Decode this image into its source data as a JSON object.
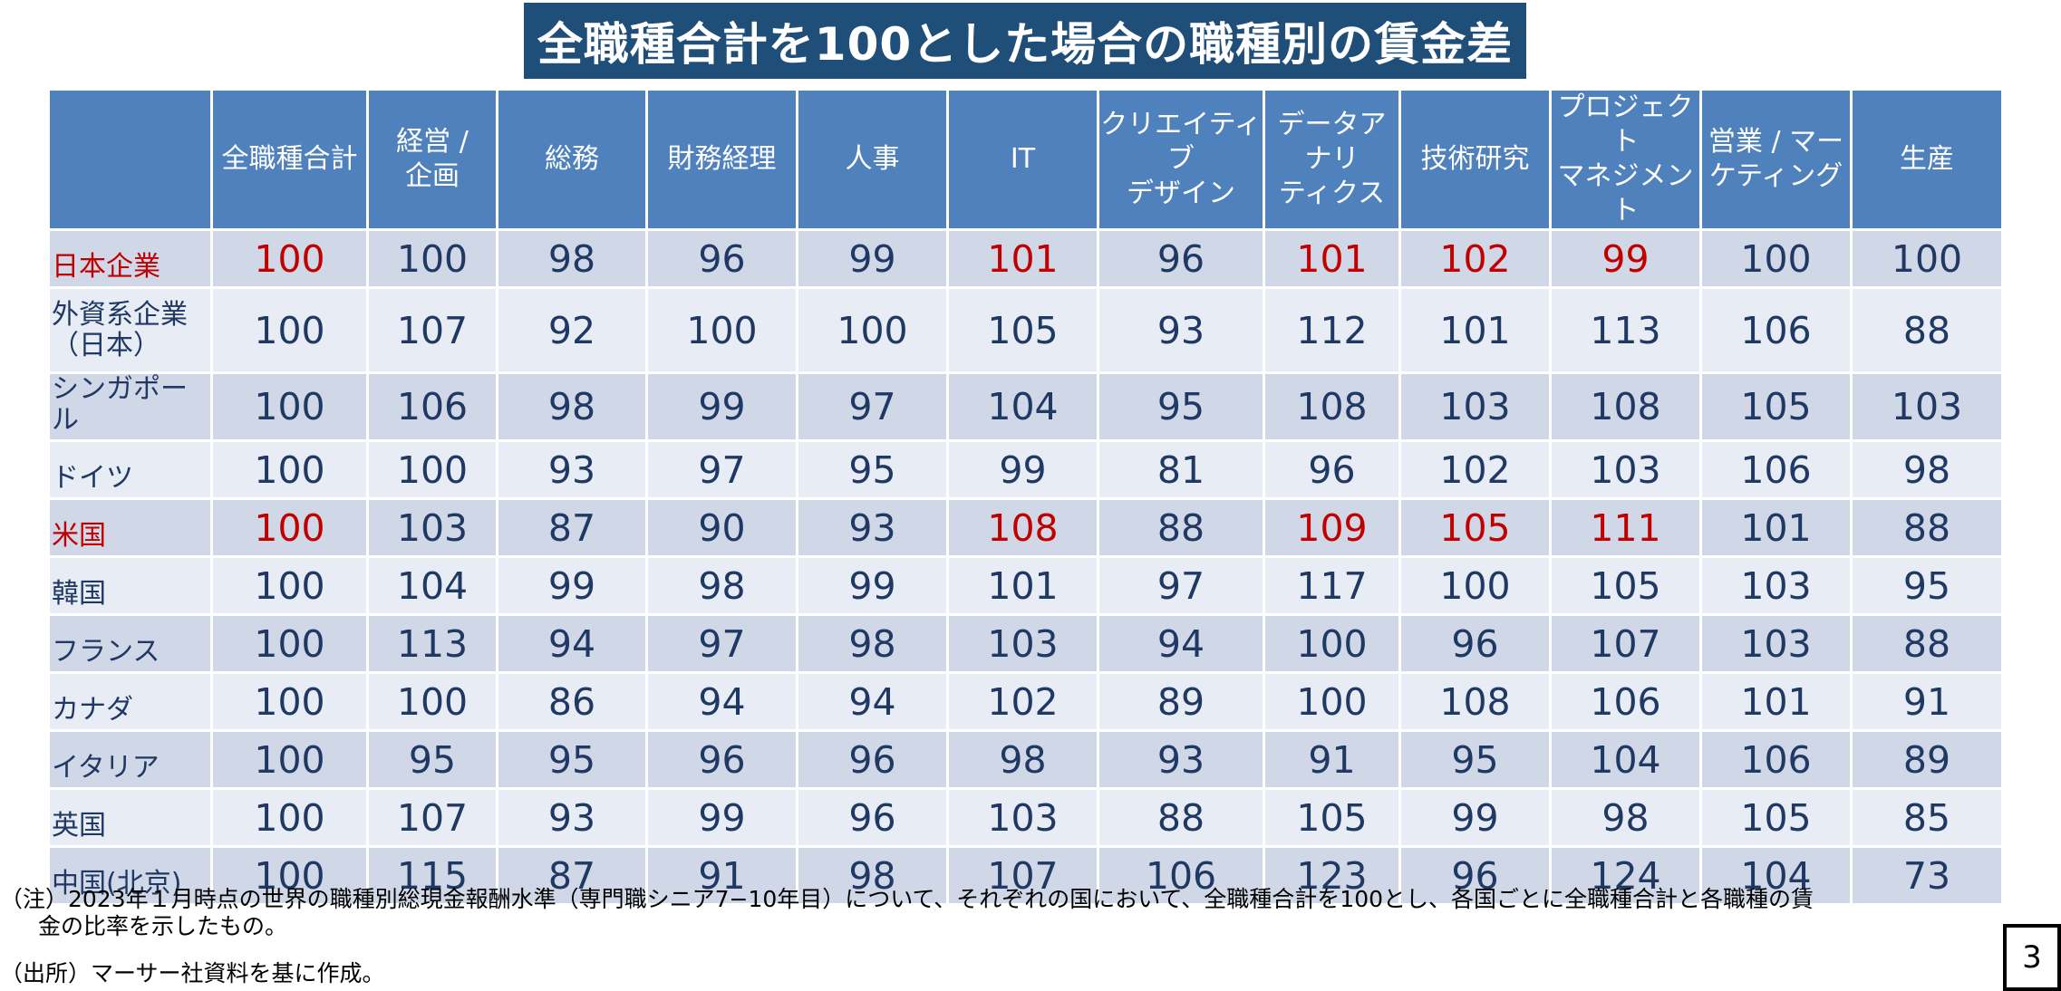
{
  "title": "全職種合計を100とした場合の職種別の賃金差",
  "highlight_color": "#c00000",
  "header_color": "#4f81bd",
  "columns": [
    "全職種合計",
    "経営 /\n企画",
    "総務",
    "財務経理",
    "人事",
    "IT",
    "クリエイティブ\nデザイン",
    "データアナリ\nティクス",
    "技術研究",
    "プロジェクト\nマネジメント",
    "営業 / マー\nケティング",
    "生産"
  ],
  "rows": [
    {
      "label": "日本企業",
      "values": [
        "100",
        "100",
        "98",
        "96",
        "99",
        "101",
        "96",
        "101",
        "102",
        "99",
        "100",
        "100"
      ]
    },
    {
      "label": "外資系企業\n（日本）",
      "values": [
        "100",
        "107",
        "92",
        "100",
        "100",
        "105",
        "93",
        "112",
        "101",
        "113",
        "106",
        "88"
      ]
    },
    {
      "label": "シンガポール",
      "values": [
        "100",
        "106",
        "98",
        "99",
        "97",
        "104",
        "95",
        "108",
        "103",
        "108",
        "105",
        "103"
      ]
    },
    {
      "label": "ドイツ",
      "values": [
        "100",
        "100",
        "93",
        "97",
        "95",
        "99",
        "81",
        "96",
        "102",
        "103",
        "106",
        "98"
      ]
    },
    {
      "label": "米国",
      "values": [
        "100",
        "103",
        "87",
        "90",
        "93",
        "108",
        "88",
        "109",
        "105",
        "111",
        "101",
        "88"
      ]
    },
    {
      "label": "韓国",
      "values": [
        "100",
        "104",
        "99",
        "98",
        "99",
        "101",
        "97",
        "117",
        "100",
        "105",
        "103",
        "95"
      ]
    },
    {
      "label": "フランス",
      "values": [
        "100",
        "113",
        "94",
        "97",
        "98",
        "103",
        "94",
        "100",
        "96",
        "107",
        "103",
        "88"
      ]
    },
    {
      "label": "カナダ",
      "values": [
        "100",
        "100",
        "86",
        "94",
        "94",
        "102",
        "89",
        "100",
        "108",
        "106",
        "101",
        "91"
      ]
    },
    {
      "label": "イタリア",
      "values": [
        "100",
        "95",
        "95",
        "96",
        "96",
        "98",
        "93",
        "91",
        "95",
        "104",
        "106",
        "89"
      ]
    },
    {
      "label": "英国",
      "values": [
        "100",
        "107",
        "93",
        "99",
        "96",
        "103",
        "88",
        "105",
        "99",
        "98",
        "105",
        "85"
      ]
    },
    {
      "label": "中国(北京)",
      "values": [
        "100",
        "115",
        "87",
        "91",
        "98",
        "107",
        "106",
        "123",
        "96",
        "124",
        "104",
        "73"
      ]
    }
  ],
  "note_line1": "（注）2023年１月時点の世界の職種別総現金報酬水準（専門職シニア7−10年目）について、それぞれの国において、全職種合計を100とし、各国ごとに全職種合計と各職種の賃",
  "note_line2": "金の比率を示したもの。",
  "source": "（出所）マーサー社資料を基に作成。",
  "page_number": "3"
}
